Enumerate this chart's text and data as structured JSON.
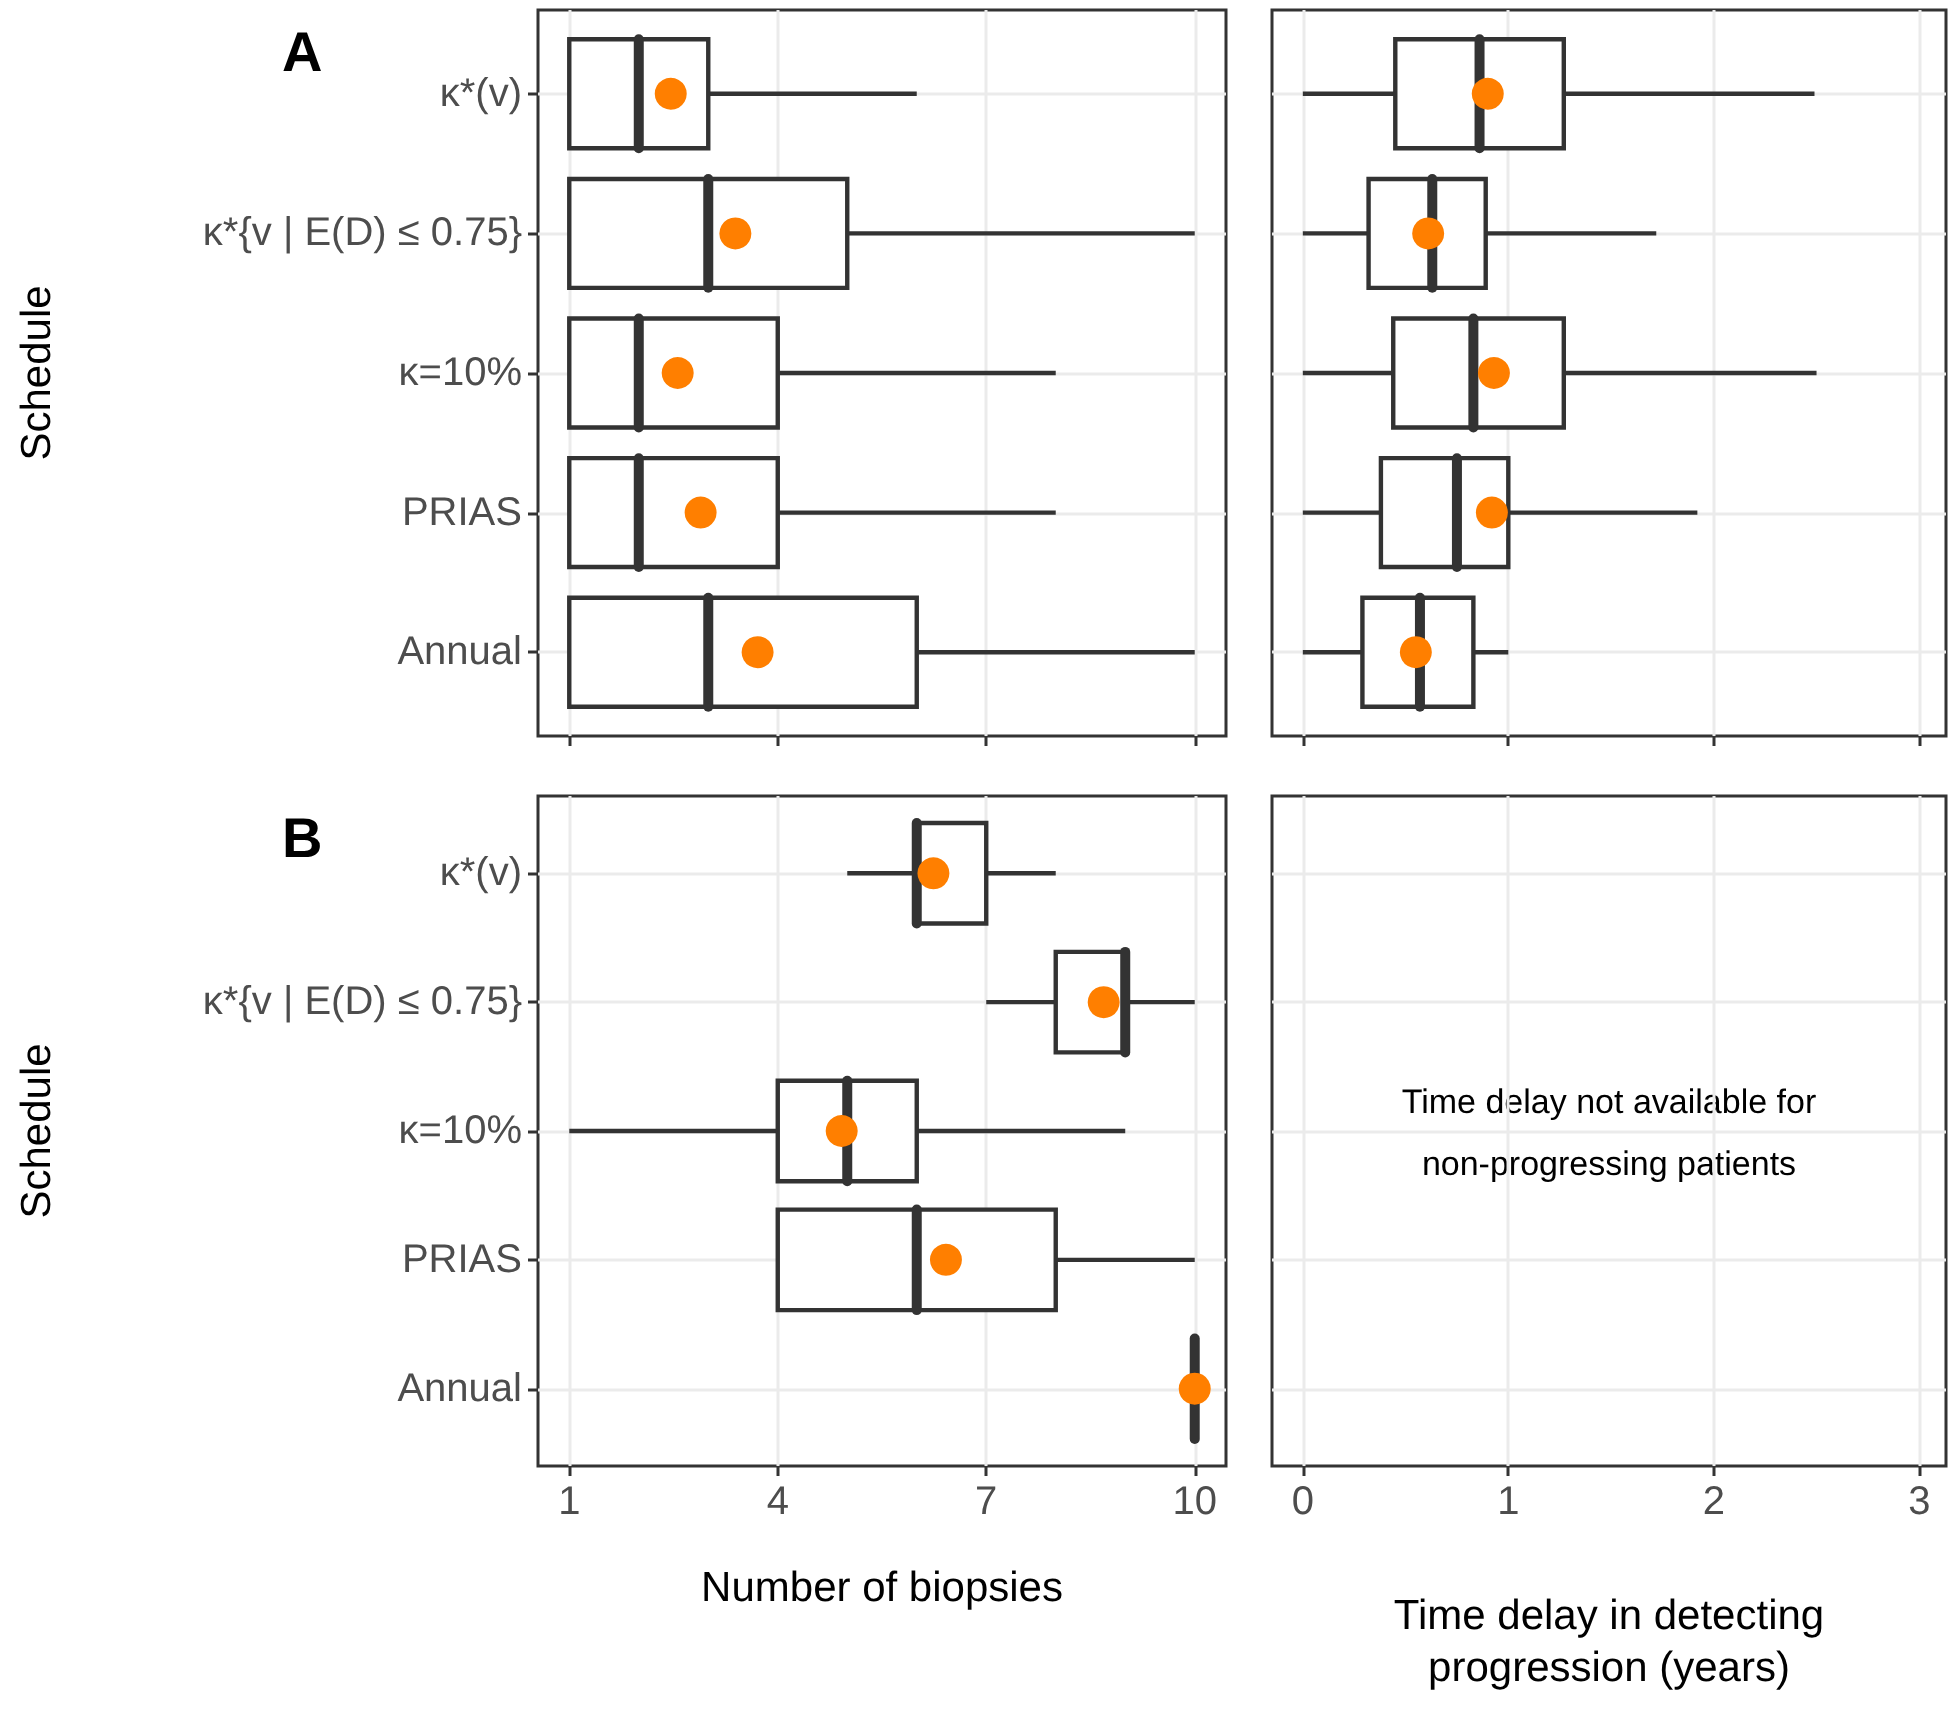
{
  "chart_data": [
    {
      "type": "box",
      "title": "A",
      "ylabel": "Schedule",
      "orientation": "horizontal",
      "categories": [
        "κ*(v)",
        "κ*{v | E(D) ≤ 0.75}",
        "κ=10%",
        "PRIAS",
        "Annual"
      ],
      "xlim": [
        0.55,
        10.45
      ],
      "xticks": [
        1,
        4,
        7,
        10
      ],
      "grid": true,
      "tick_labels": "y",
      "series": [
        {
          "type": "box",
          "color": "#333333",
          "boxes": [
            {
              "low": 1,
              "q1": 1,
              "median": 2,
              "q3": 3,
              "high": 6
            },
            {
              "low": 1,
              "q1": 1,
              "median": 3,
              "q3": 5,
              "high": 10
            },
            {
              "low": 1,
              "q1": 1,
              "median": 2,
              "q3": 4,
              "high": 8
            },
            {
              "low": 1,
              "q1": 1,
              "median": 2,
              "q3": 4,
              "high": 8
            },
            {
              "low": 1,
              "q1": 1,
              "median": 3,
              "q3": 6,
              "high": 10
            }
          ]
        },
        {
          "type": "scatter",
          "color": "#ff7f00",
          "x": [
            "κ*(v)",
            "κ*{v | E(D) ≤ 0.75}",
            "κ=10%",
            "PRIAS",
            "Annual"
          ],
          "values": [
            2.46,
            3.39,
            2.56,
            2.89,
            3.71
          ]
        }
      ]
    },
    {
      "type": "box",
      "orientation": "horizontal",
      "categories": [
        null,
        null,
        null,
        null,
        null
      ],
      "xlim": [
        -0.15,
        3.13
      ],
      "xticks": [
        0,
        1,
        2,
        3
      ],
      "grid": true,
      "tick_labels": false,
      "series": [
        {
          "type": "box",
          "color": "#333333",
          "boxes": [
            {
              "low": 0,
              "q1": 0.45,
              "median": 0.86,
              "q3": 1.27,
              "high": 2.49
            },
            {
              "low": 0,
              "q1": 0.32,
              "median": 0.63,
              "q3": 0.89,
              "high": 1.72
            },
            {
              "low": 0,
              "q1": 0.44,
              "median": 0.83,
              "q3": 1.27,
              "high": 2.5
            },
            {
              "low": 0,
              "q1": 0.38,
              "median": 0.75,
              "q3": 1.0,
              "high": 1.92
            },
            {
              "low": 0,
              "q1": 0.29,
              "median": 0.57,
              "q3": 0.83,
              "high": 1.0
            }
          ]
        },
        {
          "type": "scatter",
          "color": "#ff7f00",
          "values": [
            0.9,
            0.61,
            0.93,
            0.92,
            0.55
          ]
        }
      ]
    },
    {
      "type": "box",
      "title": "B",
      "ylabel": "Schedule",
      "xlabel": "Number of biopsies",
      "orientation": "horizontal",
      "categories": [
        "κ*(v)",
        "κ*{v | E(D) ≤ 0.75}",
        "κ=10%",
        "PRIAS",
        "Annual"
      ],
      "xlim": [
        0.55,
        10.45
      ],
      "xticks": [
        1,
        4,
        7,
        10
      ],
      "grid": true,
      "series": [
        {
          "type": "box",
          "color": "#333333",
          "boxes": [
            {
              "low": 5,
              "q1": 6,
              "median": 6,
              "q3": 7,
              "high": 8
            },
            {
              "low": 7,
              "q1": 8,
              "median": 9,
              "q3": 9,
              "high": 10
            },
            {
              "low": 1,
              "q1": 4,
              "median": 5,
              "q3": 6,
              "high": 9
            },
            {
              "low": 4,
              "q1": 4,
              "median": 6,
              "q3": 8,
              "high": 10
            },
            {
              "low": 10,
              "q1": 10,
              "median": 10,
              "q3": 10,
              "high": 10
            }
          ]
        },
        {
          "type": "scatter",
          "color": "#ff7f00",
          "x": [
            "κ*(v)",
            "κ*{v | E(D) ≤ 0.75}",
            "κ=10%",
            "PRIAS",
            "Annual"
          ],
          "values": [
            6.24,
            8.69,
            4.92,
            6.42,
            10
          ]
        }
      ]
    },
    {
      "type": "box",
      "xlabel": "Time delay in detecting\nprogression (years)",
      "orientation": "horizontal",
      "categories": [
        null,
        null,
        null,
        null,
        null
      ],
      "xlim": [
        -0.15,
        3.13
      ],
      "xticks": [
        0,
        1,
        2,
        3
      ],
      "grid": true,
      "tick_labels": "x",
      "annotations": [
        "Time delay not available for\nnon-progressing patients"
      ]
    }
  ]
}
